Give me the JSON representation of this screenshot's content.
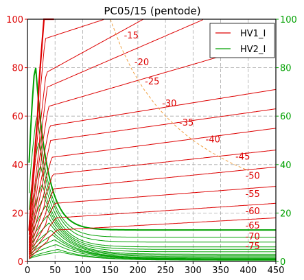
{
  "chart_data": {
    "type": "line",
    "title": "PC05/15 (pentode)",
    "xlabel": "",
    "ylabel": "",
    "y2label": "",
    "xlim": [
      0,
      450
    ],
    "ylim": [
      0,
      100
    ],
    "y2lim": [
      0,
      100
    ],
    "xticks": [
      0,
      50,
      100,
      150,
      200,
      250,
      300,
      350,
      400,
      450
    ],
    "yticks": [
      0,
      20,
      40,
      60,
      80,
      100
    ],
    "y2ticks": [
      0,
      20,
      40,
      60,
      80,
      100
    ],
    "y2ticklabels": [
      "0",
      "20",
      "40",
      "60",
      "80",
      "100"
    ],
    "grid": true,
    "legend": {
      "location": "top-right",
      "entries": [
        {
          "name": "HV1_I",
          "color": "#dd0000"
        },
        {
          "name": "HV2_I",
          "color": "#00a000"
        }
      ]
    },
    "colors": {
      "hv1": "#dd0000",
      "hv2": "#00a000",
      "dissipation": "#f0a040",
      "grid": "#a8a8a8"
    },
    "annotations": [
      {
        "text": "-15",
        "x": 188,
        "y": 93.5
      },
      {
        "text": "-20",
        "x": 207,
        "y": 82.5
      },
      {
        "text": "-25",
        "x": 226,
        "y": 74.5
      },
      {
        "text": "-30",
        "x": 257,
        "y": 65.5
      },
      {
        "text": "-35",
        "x": 288,
        "y": 57.5
      },
      {
        "text": "-40",
        "x": 336,
        "y": 50.5
      },
      {
        "text": "-45",
        "x": 390,
        "y": 43.5
      },
      {
        "text": "-50",
        "x": 408,
        "y": 35.5
      },
      {
        "text": "-55",
        "x": 408,
        "y": 28.0
      },
      {
        "text": "-60",
        "x": 408,
        "y": 21.0
      },
      {
        "text": "-65",
        "x": 408,
        "y": 15.0
      },
      {
        "text": "-70",
        "x": 408,
        "y": 10.5
      },
      {
        "text": "-75",
        "x": 408,
        "y": 6.5
      }
    ],
    "dissipation_curve": {
      "x": [
        150,
        170,
        190,
        210,
        230,
        250,
        270,
        290,
        310,
        330,
        350,
        370,
        390,
        400
      ],
      "y": [
        100,
        88.2,
        78.9,
        71.4,
        65.2,
        60.0,
        55.6,
        51.7,
        48.4,
        45.5,
        42.9,
        40.5,
        38.5,
        37.5
      ]
    },
    "series": [
      {
        "name": "HV1_I",
        "grid_voltages": [
          -15,
          -20,
          -25,
          -30,
          -35,
          -40,
          -45,
          -50,
          -55,
          -60,
          -65,
          -70,
          -75
        ],
        "knee_y": [
          100,
          92,
          78,
          72,
          64,
          56,
          50,
          43,
          36,
          30,
          24,
          18,
          13
        ],
        "end_y": [
          100,
          100,
          100,
          100,
          88,
          71,
          63,
          55,
          46,
          39,
          31,
          24,
          18
        ],
        "end_x": [
          50,
          140,
          210,
          320,
          400,
          450,
          450,
          450,
          450,
          450,
          450,
          450,
          450
        ]
      },
      {
        "name": "HV2_I",
        "peak_y": [
          83,
          62,
          50,
          40,
          32,
          27,
          23,
          19,
          16,
          13,
          11,
          9,
          7,
          5,
          4
        ],
        "tail_y": [
          13,
          10,
          8,
          6,
          5,
          4,
          3,
          2.5,
          2,
          1.5,
          1.2,
          1,
          0.8,
          0.6,
          0.5
        ]
      }
    ]
  }
}
